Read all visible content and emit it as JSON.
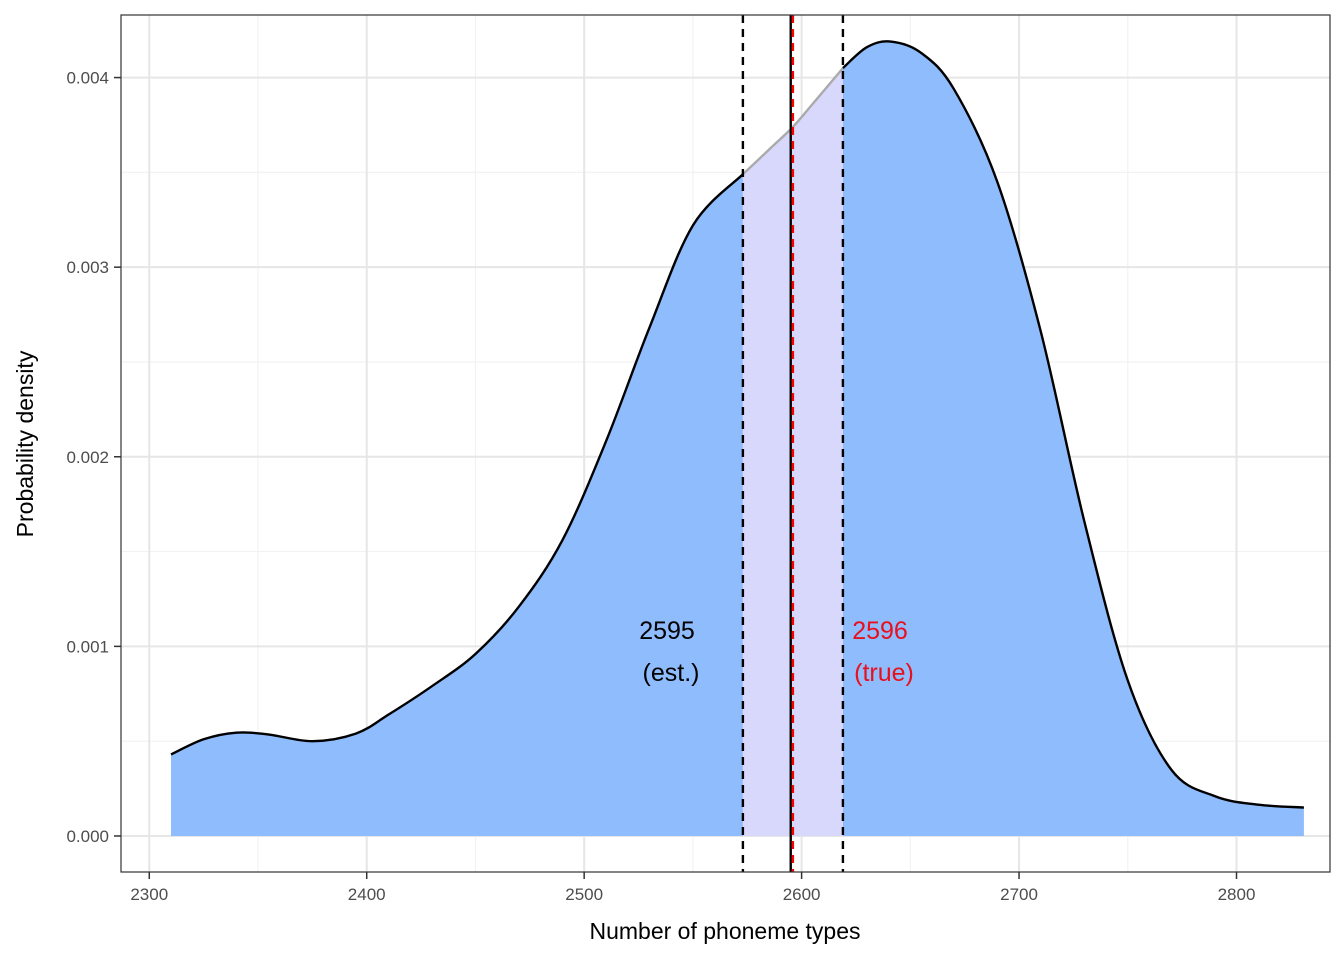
{
  "chart_data": {
    "type": "area",
    "title": "",
    "xlabel": "Number of phoneme types",
    "ylabel": "Probability density",
    "xlim": [
      2287,
      2843
    ],
    "ylim": [
      -0.00019,
      0.00433
    ],
    "x_ticks": [
      2300,
      2400,
      2500,
      2600,
      2700,
      2800
    ],
    "x_tick_labels": [
      "2300",
      "2400",
      "2500",
      "2600",
      "2700",
      "2800"
    ],
    "y_ticks": [
      0.0,
      0.001,
      0.002,
      0.003,
      0.004
    ],
    "y_tick_labels": [
      "0.000",
      "0.001",
      "0.002",
      "0.003",
      "0.004"
    ],
    "grid": true,
    "legend": "none",
    "density_curve": {
      "x": [
        2310,
        2325,
        2340,
        2355,
        2375,
        2395,
        2410,
        2430,
        2450,
        2470,
        2490,
        2510,
        2530,
        2550,
        2573,
        2585,
        2596,
        2605,
        2619,
        2630,
        2641,
        2655,
        2670,
        2690,
        2710,
        2730,
        2750,
        2770,
        2790,
        2810,
        2831
      ],
      "y": [
        0.00043,
        0.00051,
        0.000545,
        0.000535,
        0.0005,
        0.00054,
        0.00064,
        0.00079,
        0.00096,
        0.00121,
        0.00156,
        0.00208,
        0.00268,
        0.00322,
        0.00349,
        0.00362,
        0.00374,
        0.00386,
        0.00405,
        0.00416,
        0.00419,
        0.00413,
        0.00394,
        0.00345,
        0.00266,
        0.00166,
        0.00082,
        0.00035,
        0.00021,
        0.000165,
        0.00015
      ]
    },
    "interval": {
      "lower": 2573,
      "upper": 2619
    },
    "estimate": {
      "value": 2595,
      "label": "2595",
      "sublabel": "(est.)"
    },
    "true_value": {
      "value": 2596,
      "label": "2596",
      "sublabel": "(true)"
    },
    "colors": {
      "fill": "#8fbcfc",
      "interval_fill": "#d8d7fc",
      "curve": "#000000",
      "interval_curve": "#aaaaaa",
      "estimate_line": "#000000",
      "true_line": "#ff0000",
      "true_text": "#e8101c",
      "grid_major": "#e6e6e6",
      "grid_minor": "#f2f2f2",
      "panel_border": "#333333"
    }
  }
}
